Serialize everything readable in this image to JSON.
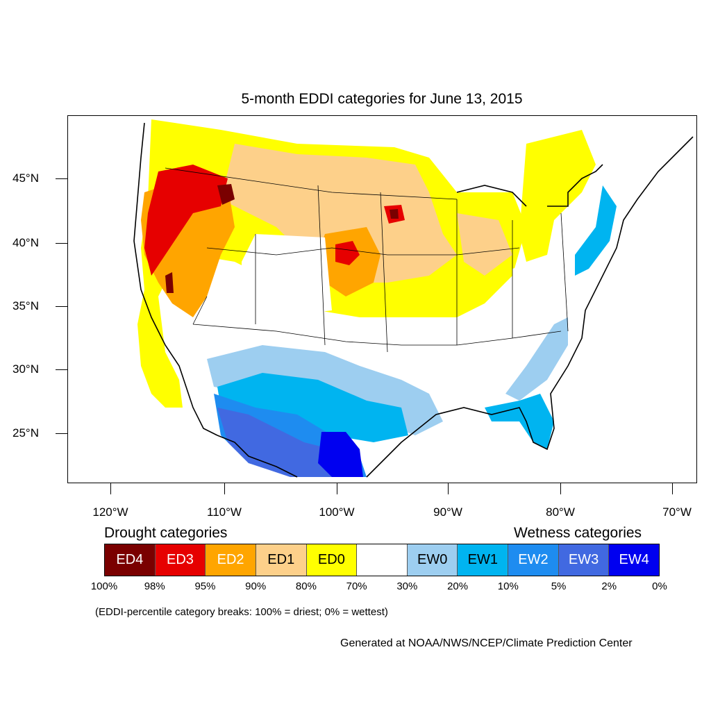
{
  "title": "5-month EDDI categories for June 13, 2015",
  "lat_labels": [
    "45°N",
    "40°N",
    "35°N",
    "30°N",
    "25°N"
  ],
  "lon_labels": [
    "120°W",
    "110°W",
    "100°W",
    "90°W",
    "80°W",
    "70°W"
  ],
  "legend": {
    "drought_heading": "Drought categories",
    "wetness_heading": "Wetness categories",
    "categories": [
      {
        "label": "ED4",
        "color": "#7a0000",
        "text_color": "#ffffff"
      },
      {
        "label": "ED3",
        "color": "#e60000",
        "text_color": "#ffffff"
      },
      {
        "label": "ED2",
        "color": "#ffa500",
        "text_color": "#ffffff"
      },
      {
        "label": "ED1",
        "color": "#fdd08a",
        "text_color": "#000000"
      },
      {
        "label": "ED0",
        "color": "#ffff00",
        "text_color": "#000000"
      },
      {
        "label": "",
        "color": "#ffffff",
        "text_color": "#000000"
      },
      {
        "label": "EW0",
        "color": "#9dcef0",
        "text_color": "#000000"
      },
      {
        "label": "EW1",
        "color": "#00b4f0",
        "text_color": "#000000"
      },
      {
        "label": "EW2",
        "color": "#1e8cf0",
        "text_color": "#ffffff"
      },
      {
        "label": "EW3",
        "color": "#4169e1",
        "text_color": "#ffffff"
      },
      {
        "label": "EW4",
        "color": "#0000f0",
        "text_color": "#ffffff"
      }
    ],
    "percentiles": [
      "100%",
      "98%",
      "95%",
      "90%",
      "80%",
      "70%",
      "30%",
      "20%",
      "10%",
      "5%",
      "2%",
      "0%"
    ]
  },
  "note": "(EDDI-percentile category breaks: 100% = driest; 0% = wettest)",
  "credit": "Generated at NOAA/NWS/NCEP/Climate Prediction Center"
}
